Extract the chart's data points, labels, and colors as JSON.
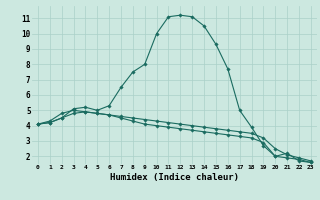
{
  "xlabel": "Humidex (Indice chaleur)",
  "background_color": "#cce8e0",
  "grid_color": "#aad0c8",
  "line_color": "#1a6b60",
  "xlim": [
    -0.5,
    23.5
  ],
  "ylim": [
    1.5,
    11.8
  ],
  "xticks": [
    0,
    1,
    2,
    3,
    4,
    5,
    6,
    7,
    8,
    9,
    10,
    11,
    12,
    13,
    14,
    15,
    16,
    17,
    18,
    19,
    20,
    21,
    22,
    23
  ],
  "yticks": [
    2,
    3,
    4,
    5,
    6,
    7,
    8,
    9,
    10,
    11
  ],
  "line1_x": [
    0,
    1,
    2,
    3,
    4,
    5,
    6,
    7,
    8,
    9,
    10,
    11,
    12,
    13,
    14,
    15,
    16,
    17,
    18,
    19,
    20,
    21,
    22,
    23
  ],
  "line1_y": [
    4.1,
    4.2,
    4.5,
    5.1,
    5.2,
    5.0,
    5.3,
    6.5,
    7.5,
    8.0,
    10.0,
    11.1,
    11.2,
    11.1,
    10.5,
    9.3,
    7.7,
    5.0,
    3.9,
    2.7,
    2.0,
    2.2,
    1.7,
    1.6
  ],
  "line2_x": [
    0,
    1,
    2,
    3,
    4,
    5,
    6,
    7,
    8,
    9,
    10,
    11,
    12,
    13,
    14,
    15,
    16,
    17,
    18,
    19,
    20,
    21,
    22,
    23
  ],
  "line2_y": [
    4.1,
    4.3,
    4.8,
    5.0,
    4.9,
    4.8,
    4.7,
    4.6,
    4.5,
    4.4,
    4.3,
    4.2,
    4.1,
    4.0,
    3.9,
    3.8,
    3.7,
    3.6,
    3.5,
    3.2,
    2.5,
    2.1,
    1.9,
    1.7
  ],
  "line3_x": [
    0,
    1,
    2,
    3,
    4,
    5,
    6,
    7,
    8,
    9,
    10,
    11,
    12,
    13,
    14,
    15,
    16,
    17,
    18,
    19,
    20,
    21,
    22,
    23
  ],
  "line3_y": [
    4.1,
    4.2,
    4.5,
    4.8,
    4.9,
    4.8,
    4.7,
    4.5,
    4.3,
    4.1,
    4.0,
    3.9,
    3.8,
    3.7,
    3.6,
    3.5,
    3.4,
    3.3,
    3.2,
    2.9,
    2.0,
    1.9,
    1.8,
    1.6
  ]
}
